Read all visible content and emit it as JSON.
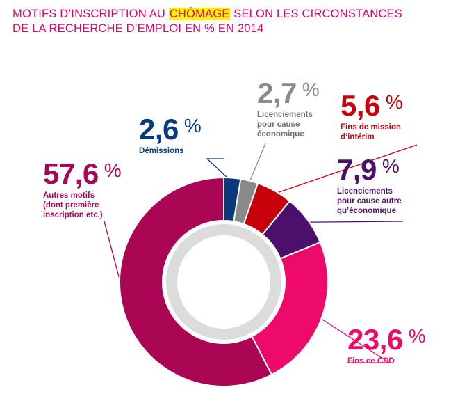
{
  "title": {
    "line1_before": "MOTIFS D’INSCRIPTION AU ",
    "line1_highlight": "CHÔMAGE",
    "line1_after": " SELON LES CIRCONSTANCES",
    "line2": "DE LA RECHERCHE D’EMPLOI EN % EN 2014"
  },
  "chart_data": {
    "type": "pie",
    "variant": "donut",
    "unit": "%",
    "slices": [
      {
        "value_label": "2,6",
        "value": 2.6,
        "label": "Démissions",
        "color": "#0a3a7c"
      },
      {
        "value_label": "2,7",
        "value": 2.7,
        "label": "Licenciements pour cause économique",
        "color": "#8a8a8a"
      },
      {
        "value_label": "5,6",
        "value": 5.6,
        "label": "Fins de mission d’intérim",
        "color": "#c8000a"
      },
      {
        "value_label": "7,9",
        "value": 7.9,
        "label": "Licenciements pour cause autre qu’économique",
        "color": "#4d0f6c"
      },
      {
        "value_label": "23,6",
        "value": 23.6,
        "label": "Fins ce CDD",
        "color": "#ee0a6a"
      },
      {
        "value_label": "57,6",
        "value": 57.6,
        "label": "Autres motifs (dont première inscription etc.)",
        "color": "#ab0654"
      }
    ],
    "captions": {
      "demissions": [
        "Démissions"
      ],
      "eco": [
        "Licenciements",
        "pour cause",
        "économique"
      ],
      "interim": [
        "Fins de mission",
        "d’intérim"
      ],
      "autre": [
        "Licenciements",
        "pour cause autre",
        "qu’économique"
      ],
      "cdd": [
        "Fins ce CDD"
      ],
      "autres": [
        "Autres motifs",
        "(dont première",
        "inscription etc.)"
      ]
    },
    "percent_sign": "%",
    "inner_ring_color": "#dcdcdc"
  }
}
